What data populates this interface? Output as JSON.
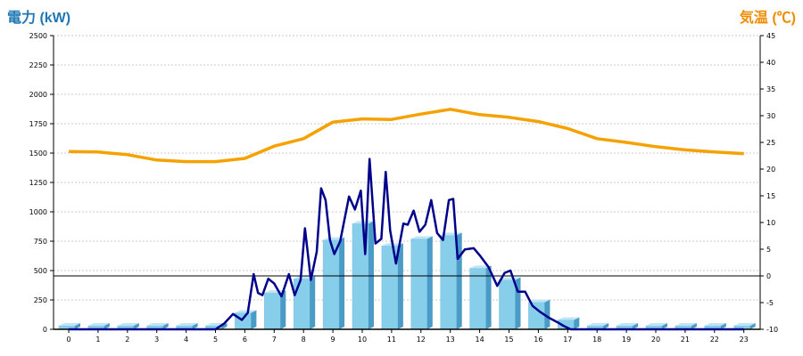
{
  "chart_data": {
    "type": "bar",
    "ylabel_left": "電力 (kW)",
    "ylabel_right": "気温 (℃)",
    "categories": [
      "0",
      "1",
      "2",
      "3",
      "4",
      "5",
      "6",
      "7",
      "8",
      "9",
      "10",
      "11",
      "12",
      "13",
      "14",
      "15",
      "16",
      "17",
      "18",
      "19",
      "20",
      "21",
      "22",
      "23"
    ],
    "y_left": {
      "min": 0,
      "max": 2500,
      "ticks": [
        0,
        250,
        500,
        750,
        1000,
        1250,
        1500,
        1750,
        2000,
        2250,
        2500
      ]
    },
    "y_right": {
      "min": -10,
      "max": 45,
      "ticks": [
        -10,
        -5,
        0,
        5,
        10,
        15,
        20,
        25,
        30,
        35,
        40,
        45
      ]
    },
    "reference_line_temp": 0,
    "grid": true,
    "series": [
      {
        "kind": "bar",
        "axis": "left",
        "color": "#87ceeb",
        "values": [
          30,
          30,
          30,
          30,
          30,
          30,
          140,
          310,
          430,
          760,
          900,
          710,
          770,
          800,
          520,
          420,
          230,
          80,
          30,
          30,
          30,
          30,
          30,
          30
        ]
      },
      {
        "kind": "line",
        "axis": "left",
        "color": "#00008b",
        "points": [
          [
            0,
            0
          ],
          [
            1,
            0
          ],
          [
            2,
            0
          ],
          [
            3,
            0
          ],
          [
            4,
            0
          ],
          [
            5,
            0
          ],
          [
            5.3,
            50
          ],
          [
            5.6,
            130
          ],
          [
            5.9,
            80
          ],
          [
            6.1,
            140
          ],
          [
            6.3,
            470
          ],
          [
            6.45,
            310
          ],
          [
            6.6,
            290
          ],
          [
            6.8,
            430
          ],
          [
            7.0,
            390
          ],
          [
            7.25,
            280
          ],
          [
            7.5,
            470
          ],
          [
            7.7,
            290
          ],
          [
            7.9,
            420
          ],
          [
            8.05,
            860
          ],
          [
            8.25,
            420
          ],
          [
            8.45,
            660
          ],
          [
            8.6,
            1200
          ],
          [
            8.75,
            1100
          ],
          [
            8.9,
            760
          ],
          [
            9.05,
            640
          ],
          [
            9.25,
            750
          ],
          [
            9.55,
            1130
          ],
          [
            9.75,
            1020
          ],
          [
            9.95,
            1180
          ],
          [
            10.1,
            640
          ],
          [
            10.25,
            1450
          ],
          [
            10.45,
            730
          ],
          [
            10.65,
            770
          ],
          [
            10.8,
            1340
          ],
          [
            10.95,
            840
          ],
          [
            11.15,
            560
          ],
          [
            11.4,
            900
          ],
          [
            11.55,
            890
          ],
          [
            11.75,
            1010
          ],
          [
            11.95,
            830
          ],
          [
            12.15,
            890
          ],
          [
            12.35,
            1100
          ],
          [
            12.55,
            820
          ],
          [
            12.75,
            760
          ],
          [
            12.95,
            1100
          ],
          [
            13.1,
            1110
          ],
          [
            13.25,
            600
          ],
          [
            13.5,
            680
          ],
          [
            13.8,
            690
          ],
          [
            14.0,
            630
          ],
          [
            14.3,
            530
          ],
          [
            14.6,
            370
          ],
          [
            14.85,
            480
          ],
          [
            15.05,
            500
          ],
          [
            15.3,
            320
          ],
          [
            15.55,
            320
          ],
          [
            15.8,
            200
          ],
          [
            16.05,
            150
          ],
          [
            16.35,
            100
          ],
          [
            16.65,
            60
          ],
          [
            16.85,
            30
          ],
          [
            17.1,
            0
          ],
          [
            18,
            0
          ],
          [
            19,
            0
          ],
          [
            20,
            0
          ],
          [
            21,
            0
          ],
          [
            22,
            0
          ],
          [
            23,
            0
          ]
        ]
      },
      {
        "kind": "line",
        "axis": "right",
        "color": "#f5a100",
        "values": [
          23.3,
          23.2,
          22.7,
          21.7,
          21.4,
          21.4,
          22.0,
          24.3,
          25.7,
          28.8,
          29.4,
          29.3,
          30.3,
          31.2,
          30.2,
          29.7,
          28.9,
          27.6,
          25.7,
          25.0,
          24.2,
          23.6,
          23.2,
          22.9
        ]
      }
    ]
  }
}
